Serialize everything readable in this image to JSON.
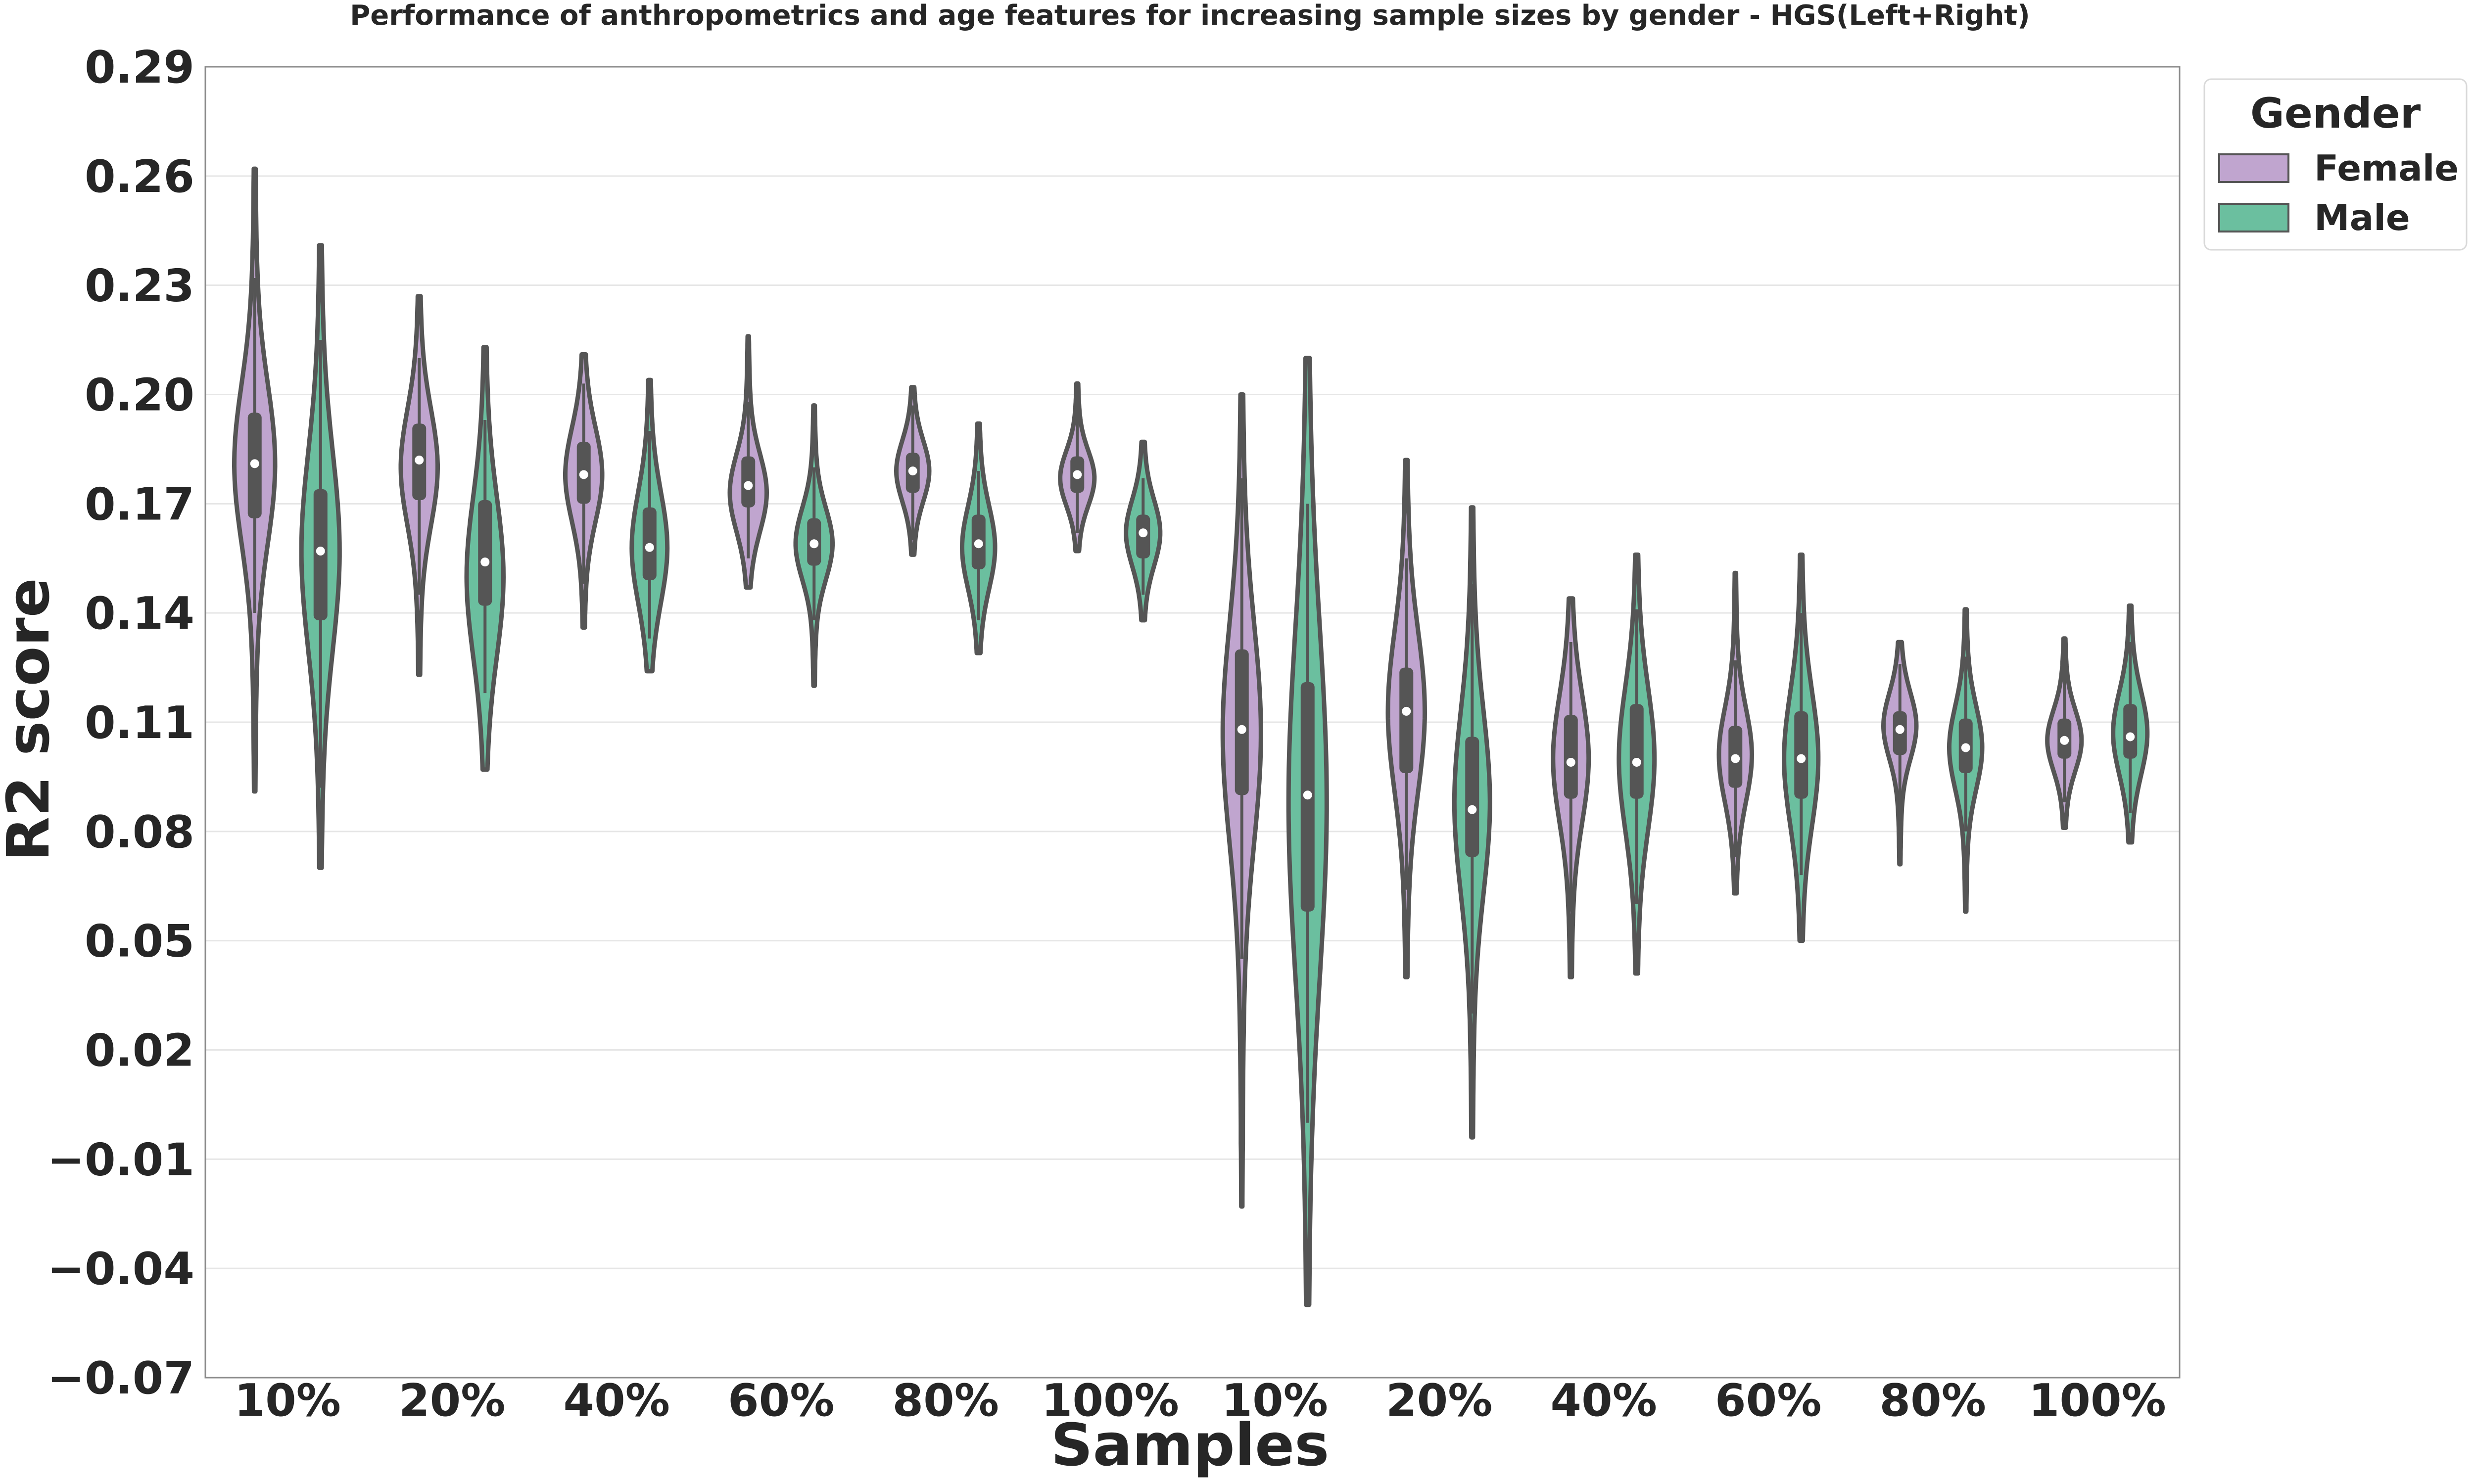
{
  "chart_data": {
    "type": "violin",
    "title": "Performance of anthropometrics and age features for increasing sample sizes by gender - HGS(Left+Right)",
    "xlabel": "Samples",
    "ylabel": "R2 score",
    "ylim": [
      -0.07,
      0.29
    ],
    "yticks": [
      "0.29",
      "0.26",
      "0.23",
      "0.20",
      "0.17",
      "0.14",
      "0.11",
      "0.08",
      "0.05",
      "0.02",
      "−0.01",
      "−0.04",
      "−0.07"
    ],
    "ytick_values": [
      0.29,
      0.26,
      0.23,
      0.2,
      0.17,
      0.14,
      0.11,
      0.08,
      0.05,
      0.02,
      -0.01,
      -0.04,
      -0.07
    ],
    "categories": [
      "10%",
      "20%",
      "40%",
      "60%",
      "80%",
      "100%",
      "10%",
      "20%",
      "40%",
      "60%",
      "80%",
      "100%"
    ],
    "grid": "horizontal",
    "legend": {
      "title": "Gender",
      "position": "top-right outside",
      "entries": [
        "Female",
        "Male"
      ]
    },
    "colors": {
      "Female": "#c0a5cf",
      "Male": "#6bbf9f",
      "outline": "#555555",
      "grid": "#e6e6e6"
    },
    "series": [
      {
        "name": "Female",
        "violins": [
          {
            "min": 0.091,
            "max": 0.262,
            "q1": 0.166,
            "median": 0.181,
            "q3": 0.195,
            "wlo": 0.14,
            "whi": 0.232,
            "mode": 0.181,
            "w": 0.62
          },
          {
            "min": 0.123,
            "max": 0.227,
            "q1": 0.171,
            "median": 0.182,
            "q3": 0.192,
            "wlo": 0.145,
            "whi": 0.21,
            "mode": 0.18,
            "w": 0.56
          },
          {
            "min": 0.136,
            "max": 0.211,
            "q1": 0.17,
            "median": 0.178,
            "q3": 0.187,
            "wlo": 0.148,
            "whi": 0.203,
            "mode": 0.178,
            "w": 0.56
          },
          {
            "min": 0.147,
            "max": 0.216,
            "q1": 0.169,
            "median": 0.175,
            "q3": 0.183,
            "wlo": 0.155,
            "whi": 0.198,
            "mode": 0.173,
            "w": 0.56
          },
          {
            "min": 0.156,
            "max": 0.202,
            "q1": 0.173,
            "median": 0.179,
            "q3": 0.184,
            "wlo": 0.16,
            "whi": 0.197,
            "mode": 0.179,
            "w": 0.5
          },
          {
            "min": 0.157,
            "max": 0.203,
            "q1": 0.173,
            "median": 0.178,
            "q3": 0.183,
            "wlo": 0.162,
            "whi": 0.196,
            "mode": 0.177,
            "w": 0.52
          },
          {
            "min": -0.023,
            "max": 0.2,
            "q1": 0.09,
            "median": 0.108,
            "q3": 0.13,
            "wlo": 0.045,
            "whi": 0.177,
            "mode": 0.107,
            "w": 0.58
          },
          {
            "min": 0.04,
            "max": 0.182,
            "q1": 0.096,
            "median": 0.113,
            "q3": 0.125,
            "wlo": 0.064,
            "whi": 0.155,
            "mode": 0.113,
            "w": 0.56
          },
          {
            "min": 0.04,
            "max": 0.144,
            "q1": 0.089,
            "median": 0.099,
            "q3": 0.112,
            "wlo": 0.058,
            "whi": 0.132,
            "mode": 0.1,
            "w": 0.54
          },
          {
            "min": 0.063,
            "max": 0.151,
            "q1": 0.092,
            "median": 0.1,
            "q3": 0.109,
            "wlo": 0.073,
            "whi": 0.127,
            "mode": 0.101,
            "w": 0.5
          },
          {
            "min": 0.071,
            "max": 0.132,
            "q1": 0.101,
            "median": 0.108,
            "q3": 0.113,
            "wlo": 0.083,
            "whi": 0.126,
            "mode": 0.109,
            "w": 0.5
          },
          {
            "min": 0.081,
            "max": 0.133,
            "q1": 0.1,
            "median": 0.105,
            "q3": 0.111,
            "wlo": 0.088,
            "whi": 0.126,
            "mode": 0.105,
            "w": 0.52
          }
        ]
      },
      {
        "name": "Male",
        "violins": [
          {
            "min": 0.07,
            "max": 0.241,
            "q1": 0.138,
            "median": 0.157,
            "q3": 0.174,
            "wlo": 0.092,
            "whi": 0.215,
            "mode": 0.157,
            "w": 0.58
          },
          {
            "min": 0.097,
            "max": 0.213,
            "q1": 0.142,
            "median": 0.154,
            "q3": 0.171,
            "wlo": 0.118,
            "whi": 0.193,
            "mode": 0.15,
            "w": 0.56
          },
          {
            "min": 0.124,
            "max": 0.204,
            "q1": 0.149,
            "median": 0.158,
            "q3": 0.169,
            "wlo": 0.133,
            "whi": 0.19,
            "mode": 0.158,
            "w": 0.54
          },
          {
            "min": 0.12,
            "max": 0.197,
            "q1": 0.153,
            "median": 0.159,
            "q3": 0.166,
            "wlo": 0.138,
            "whi": 0.18,
            "mode": 0.159,
            "w": 0.56
          },
          {
            "min": 0.129,
            "max": 0.192,
            "q1": 0.152,
            "median": 0.159,
            "q3": 0.167,
            "wlo": 0.138,
            "whi": 0.179,
            "mode": 0.158,
            "w": 0.5
          },
          {
            "min": 0.138,
            "max": 0.187,
            "q1": 0.155,
            "median": 0.162,
            "q3": 0.167,
            "wlo": 0.145,
            "whi": 0.177,
            "mode": 0.162,
            "w": 0.52
          },
          {
            "min": -0.05,
            "max": 0.21,
            "q1": 0.058,
            "median": 0.09,
            "q3": 0.121,
            "wlo": 0.0,
            "whi": 0.17,
            "mode": 0.088,
            "w": 0.58
          },
          {
            "min": -0.004,
            "max": 0.169,
            "q1": 0.073,
            "median": 0.086,
            "q3": 0.106,
            "wlo": 0.03,
            "whi": 0.148,
            "mode": 0.088,
            "w": 0.54
          },
          {
            "min": 0.041,
            "max": 0.156,
            "q1": 0.089,
            "median": 0.099,
            "q3": 0.115,
            "wlo": 0.06,
            "whi": 0.141,
            "mode": 0.1,
            "w": 0.54
          },
          {
            "min": 0.05,
            "max": 0.156,
            "q1": 0.089,
            "median": 0.1,
            "q3": 0.113,
            "wlo": 0.068,
            "whi": 0.14,
            "mode": 0.1,
            "w": 0.52
          },
          {
            "min": 0.058,
            "max": 0.141,
            "q1": 0.096,
            "median": 0.103,
            "q3": 0.111,
            "wlo": 0.08,
            "whi": 0.128,
            "mode": 0.103,
            "w": 0.5
          },
          {
            "min": 0.077,
            "max": 0.142,
            "q1": 0.1,
            "median": 0.106,
            "q3": 0.115,
            "wlo": 0.085,
            "whi": 0.132,
            "mode": 0.107,
            "w": 0.52
          }
        ]
      }
    ]
  }
}
